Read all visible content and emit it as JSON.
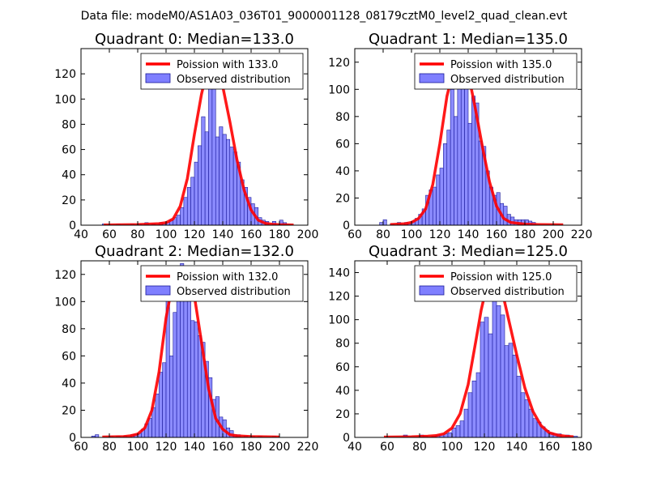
{
  "figure_title": "Data file: modeM0/AS1A03_036T01_9000001128_08179cztM0_level2_quad_clean.evt",
  "colors": {
    "poisson": "#ff0000",
    "bar_fill": "#7f7fff",
    "bar_edge": "#1a1a99"
  },
  "chart_data": [
    {
      "type": "bar",
      "quadrant": 0,
      "median": 133.0,
      "title": "Quadrant 0: Median=133.0",
      "xlim": [
        40,
        200
      ],
      "ylim": [
        0,
        140
      ],
      "xticks": [
        40,
        60,
        80,
        100,
        120,
        140,
        160,
        180,
        200
      ],
      "yticks": [
        0,
        20,
        40,
        60,
        80,
        100,
        120
      ],
      "legend": {
        "placement": "top-right",
        "poisson_label": "Poission with 133.0",
        "hist_label": "Observed distribution"
      },
      "bin_width": 2.5,
      "bins": [
        [
          55,
          1
        ],
        [
          65,
          1
        ],
        [
          75,
          1
        ],
        [
          80,
          1
        ],
        [
          85,
          2
        ],
        [
          90,
          1
        ],
        [
          95,
          2
        ],
        [
          97.5,
          1
        ],
        [
          100,
          2
        ],
        [
          102.5,
          4
        ],
        [
          105,
          6
        ],
        [
          107.5,
          8
        ],
        [
          110,
          14
        ],
        [
          112.5,
          22
        ],
        [
          115,
          30
        ],
        [
          117.5,
          38
        ],
        [
          120,
          50
        ],
        [
          122.5,
          63
        ],
        [
          125,
          86
        ],
        [
          127.5,
          74
        ],
        [
          130,
          115
        ],
        [
          132.5,
          120
        ],
        [
          135,
          70
        ],
        [
          137.5,
          78
        ],
        [
          140,
          72
        ],
        [
          142.5,
          68
        ],
        [
          145,
          62
        ],
        [
          147.5,
          58
        ],
        [
          150,
          50
        ],
        [
          152.5,
          36
        ],
        [
          155,
          30
        ],
        [
          157.5,
          22
        ],
        [
          160,
          17
        ],
        [
          162.5,
          14
        ],
        [
          165,
          6
        ],
        [
          167.5,
          4
        ],
        [
          170,
          3
        ],
        [
          175,
          3
        ],
        [
          180,
          4
        ],
        [
          182.5,
          2
        ]
      ],
      "poisson": [
        [
          56,
          0.2
        ],
        [
          80,
          0.5
        ],
        [
          95,
          1.2
        ],
        [
          100,
          2
        ],
        [
          105,
          5
        ],
        [
          110,
          15
        ],
        [
          115,
          37
        ],
        [
          120,
          72
        ],
        [
          125,
          104
        ],
        [
          128,
          118
        ],
        [
          130,
          124
        ],
        [
          131,
          125
        ],
        [
          132,
          126
        ],
        [
          133,
          126
        ],
        [
          134,
          125
        ],
        [
          136,
          122
        ],
        [
          140,
          110
        ],
        [
          145,
          82
        ],
        [
          150,
          52
        ],
        [
          155,
          28
        ],
        [
          160,
          12
        ],
        [
          165,
          4
        ],
        [
          170,
          1.5
        ],
        [
          175,
          0.7
        ],
        [
          180,
          0.4
        ],
        [
          190,
          0.2
        ]
      ]
    },
    {
      "type": "bar",
      "quadrant": 1,
      "median": 135.0,
      "title": "Quadrant 1: Median=135.0",
      "xlim": [
        60,
        220
      ],
      "ylim": [
        0,
        130
      ],
      "xticks": [
        60,
        80,
        100,
        120,
        140,
        160,
        180,
        200,
        220
      ],
      "yticks": [
        0,
        20,
        40,
        60,
        80,
        100,
        120
      ],
      "legend": {
        "placement": "top-right",
        "poisson_label": "Poission with 135.0",
        "hist_label": "Observed distribution"
      },
      "bin_width": 2.5,
      "bins": [
        [
          77.5,
          2
        ],
        [
          80,
          4
        ],
        [
          85,
          1
        ],
        [
          90,
          2
        ],
        [
          95,
          2
        ],
        [
          97.5,
          1
        ],
        [
          100,
          3
        ],
        [
          102.5,
          5
        ],
        [
          105,
          8
        ],
        [
          107.5,
          12
        ],
        [
          110,
          22
        ],
        [
          112.5,
          26
        ],
        [
          115,
          28
        ],
        [
          117.5,
          37
        ],
        [
          120,
          42
        ],
        [
          122.5,
          60
        ],
        [
          125,
          70
        ],
        [
          127.5,
          100
        ],
        [
          130,
          80
        ],
        [
          132.5,
          102
        ],
        [
          135,
          118
        ],
        [
          137.5,
          104
        ],
        [
          140,
          75
        ],
        [
          142.5,
          95
        ],
        [
          145,
          90
        ],
        [
          147.5,
          62
        ],
        [
          150,
          58
        ],
        [
          152.5,
          40
        ],
        [
          155,
          28
        ],
        [
          157.5,
          22
        ],
        [
          160,
          24
        ],
        [
          162.5,
          16
        ],
        [
          165,
          14
        ],
        [
          167.5,
          8
        ],
        [
          170,
          6
        ],
        [
          172.5,
          4
        ],
        [
          175,
          4
        ],
        [
          177.5,
          4
        ],
        [
          180,
          4
        ],
        [
          182.5,
          3
        ],
        [
          185,
          2
        ]
      ],
      "poisson": [
        [
          85,
          0.5
        ],
        [
          95,
          1
        ],
        [
          100,
          2
        ],
        [
          105,
          5
        ],
        [
          110,
          12
        ],
        [
          115,
          30
        ],
        [
          120,
          60
        ],
        [
          125,
          95
        ],
        [
          130,
          116
        ],
        [
          133,
          122
        ],
        [
          135,
          124
        ],
        [
          137,
          122
        ],
        [
          140,
          112
        ],
        [
          145,
          86
        ],
        [
          150,
          58
        ],
        [
          155,
          32
        ],
        [
          160,
          14
        ],
        [
          165,
          5
        ],
        [
          170,
          2
        ],
        [
          180,
          0.8
        ],
        [
          190,
          0.5
        ],
        [
          207,
          0.3
        ]
      ]
    },
    {
      "type": "bar",
      "quadrant": 2,
      "median": 132.0,
      "title": "Quadrant 2: Median=132.0",
      "xlim": [
        60,
        220
      ],
      "ylim": [
        0,
        130
      ],
      "xticks": [
        60,
        80,
        100,
        120,
        140,
        160,
        180,
        200,
        220
      ],
      "yticks": [
        0,
        20,
        40,
        60,
        80,
        100,
        120
      ],
      "legend": {
        "placement": "top-right",
        "poisson_label": "Poission with 132.0",
        "hist_label": "Observed distribution"
      },
      "bin_width": 2.5,
      "bins": [
        [
          67.5,
          1
        ],
        [
          70,
          2
        ],
        [
          80,
          1
        ],
        [
          85,
          1
        ],
        [
          90,
          1
        ],
        [
          95,
          2
        ],
        [
          97.5,
          2
        ],
        [
          100,
          3
        ],
        [
          102.5,
          6
        ],
        [
          105,
          10
        ],
        [
          107.5,
          14
        ],
        [
          110,
          22
        ],
        [
          112.5,
          32
        ],
        [
          115,
          48
        ],
        [
          117.5,
          55
        ],
        [
          120,
          104
        ],
        [
          122.5,
          60
        ],
        [
          125,
          92
        ],
        [
          127.5,
          118
        ],
        [
          130,
          128
        ],
        [
          132.5,
          104
        ],
        [
          135,
          116
        ],
        [
          137.5,
          86
        ],
        [
          140,
          85
        ],
        [
          142.5,
          75
        ],
        [
          145,
          70
        ],
        [
          147.5,
          56
        ],
        [
          150,
          44
        ],
        [
          152.5,
          28
        ],
        [
          155,
          30
        ],
        [
          157.5,
          15
        ],
        [
          160,
          13
        ],
        [
          162.5,
          7
        ],
        [
          165,
          5
        ],
        [
          167.5,
          2
        ],
        [
          170,
          2
        ],
        [
          175,
          1
        ],
        [
          180,
          1
        ],
        [
          185,
          1
        ],
        [
          195,
          1
        ]
      ],
      "poisson": [
        [
          75,
          0.3
        ],
        [
          90,
          0.6
        ],
        [
          95,
          1.2
        ],
        [
          100,
          2.5
        ],
        [
          105,
          7
        ],
        [
          110,
          20
        ],
        [
          115,
          48
        ],
        [
          120,
          88
        ],
        [
          125,
          116
        ],
        [
          128,
          122
        ],
        [
          131,
          124
        ],
        [
          134,
          122
        ],
        [
          137,
          116
        ],
        [
          140,
          104
        ],
        [
          145,
          70
        ],
        [
          150,
          36
        ],
        [
          155,
          14
        ],
        [
          160,
          6
        ],
        [
          165,
          2
        ],
        [
          170,
          1.2
        ],
        [
          180,
          0.6
        ],
        [
          190,
          0.4
        ],
        [
          200,
          0.3
        ]
      ]
    },
    {
      "type": "bar",
      "quadrant": 3,
      "median": 125.0,
      "title": "Quadrant 3: Median=125.0",
      "xlim": [
        40,
        180
      ],
      "ylim": [
        0,
        150
      ],
      "xticks": [
        40,
        60,
        80,
        100,
        120,
        140,
        160,
        180
      ],
      "yticks": [
        0,
        20,
        40,
        60,
        80,
        100,
        120,
        140
      ],
      "legend": {
        "placement": "top-right",
        "poisson_label": "Poission with 125.0",
        "hist_label": "Observed distribution"
      },
      "bin_width": 2.5,
      "bins": [
        [
          70,
          2
        ],
        [
          80,
          2
        ],
        [
          82.5,
          1
        ],
        [
          87.5,
          1
        ],
        [
          90,
          2
        ],
        [
          92.5,
          2
        ],
        [
          95,
          3
        ],
        [
          97.5,
          4
        ],
        [
          100,
          8
        ],
        [
          102.5,
          10
        ],
        [
          105,
          14
        ],
        [
          107.5,
          24
        ],
        [
          110,
          38
        ],
        [
          112.5,
          48
        ],
        [
          115,
          55
        ],
        [
          117.5,
          98
        ],
        [
          120,
          102
        ],
        [
          122.5,
          88
        ],
        [
          125,
          118
        ],
        [
          127.5,
          112
        ],
        [
          130,
          104
        ],
        [
          132.5,
          78
        ],
        [
          135,
          80
        ],
        [
          137.5,
          70
        ],
        [
          140,
          52
        ],
        [
          142.5,
          38
        ],
        [
          145,
          32
        ],
        [
          147.5,
          24
        ],
        [
          150,
          16
        ],
        [
          152.5,
          13
        ],
        [
          155,
          9
        ],
        [
          157.5,
          6
        ],
        [
          160,
          4
        ],
        [
          162.5,
          3
        ],
        [
          165,
          3
        ],
        [
          170,
          2
        ],
        [
          175,
          1
        ]
      ],
      "poisson": [
        [
          58,
          0.3
        ],
        [
          75,
          0.5
        ],
        [
          85,
          1
        ],
        [
          90,
          1.5
        ],
        [
          95,
          3
        ],
        [
          100,
          8
        ],
        [
          105,
          20
        ],
        [
          110,
          45
        ],
        [
          115,
          84
        ],
        [
          118,
          108
        ],
        [
          121,
          126
        ],
        [
          124,
          136
        ],
        [
          125,
          137
        ],
        [
          126,
          136
        ],
        [
          129,
          130
        ],
        [
          132,
          118
        ],
        [
          135,
          100
        ],
        [
          140,
          70
        ],
        [
          145,
          42
        ],
        [
          150,
          22
        ],
        [
          155,
          10
        ],
        [
          160,
          4
        ],
        [
          165,
          2
        ],
        [
          170,
          1
        ],
        [
          175,
          0.5
        ]
      ]
    }
  ]
}
